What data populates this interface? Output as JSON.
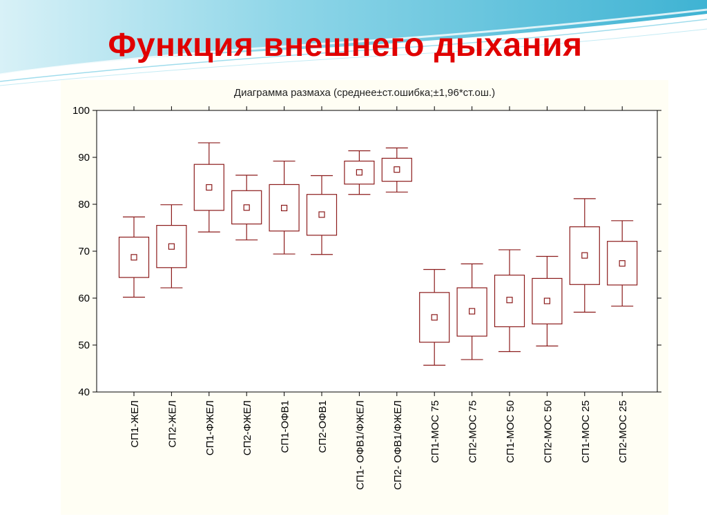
{
  "slide": {
    "title": "Функция внешнего дыхания"
  },
  "colors": {
    "title": "#e00000",
    "box": "#8b1a1a",
    "panel": "#fffef4",
    "header_wave": "#5bc3da"
  },
  "chart_data": {
    "type": "box",
    "title": "Диаграмма размаха (среднее±ст.ошибка;±1,96*ст.ош.)",
    "xlabel": "",
    "ylabel": "",
    "ylim": [
      40,
      100
    ],
    "yticks": [
      40,
      50,
      60,
      70,
      80,
      90,
      100
    ],
    "grid": false,
    "legend": "none",
    "categories": [
      "СП1-ЖЕЛ",
      "СП2-ЖЕЛ",
      "СП1-ФЖЕЛ",
      "СП2-ФЖЕЛ",
      "СП1-ОФВ1",
      "СП2-ОФВ1",
      "СП1- ОФВ1/ФЖЕЛ",
      "СП2- ОФВ1/ФЖЕЛ",
      "СП1-МОС 75",
      "СП2-МОС 75",
      "СП1-МОС 50",
      "СП2-МОС 50",
      "СП1-МОС 25",
      "СП2-МОС 25"
    ],
    "mean": [
      68.7,
      71.0,
      83.6,
      79.3,
      79.2,
      77.8,
      86.8,
      87.4,
      55.9,
      57.2,
      59.6,
      59.4,
      69.1,
      67.4
    ],
    "box_low": [
      64.4,
      66.5,
      78.7,
      75.8,
      74.3,
      73.4,
      84.3,
      84.9,
      50.6,
      51.9,
      53.9,
      54.5,
      62.9,
      62.8
    ],
    "box_high": [
      73.0,
      75.5,
      88.5,
      82.9,
      84.2,
      82.1,
      89.2,
      89.8,
      61.2,
      62.2,
      64.9,
      64.2,
      75.2,
      72.1
    ],
    "whisker_low": [
      60.2,
      62.2,
      74.1,
      72.4,
      69.4,
      69.3,
      82.1,
      82.6,
      45.7,
      46.9,
      48.6,
      49.8,
      57.0,
      58.3
    ],
    "whisker_high": [
      77.3,
      79.9,
      93.1,
      86.2,
      89.2,
      86.1,
      91.4,
      92.0,
      66.1,
      67.3,
      70.3,
      68.9,
      81.2,
      76.5
    ]
  }
}
